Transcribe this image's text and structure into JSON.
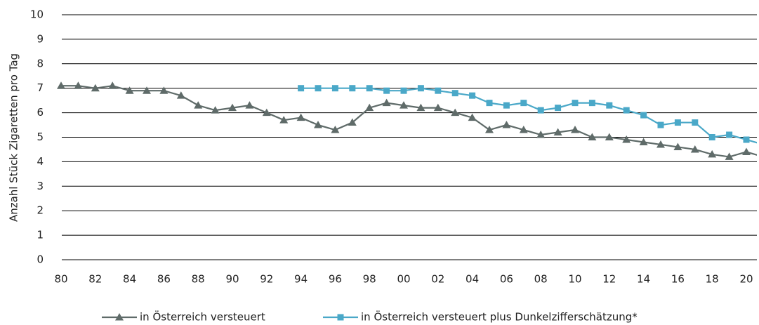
{
  "chart_data": {
    "type": "line",
    "y_label": "Anzahl Stück Zigaretten pro Tag",
    "categories": [
      "80",
      null,
      "82",
      null,
      "84",
      null,
      "86",
      null,
      "88",
      null,
      "90",
      null,
      "92",
      null,
      "94",
      null,
      "96",
      null,
      "98",
      null,
      "00",
      null,
      "02",
      null,
      "04",
      null,
      "06",
      null,
      "08",
      null,
      "10",
      null,
      "12",
      null,
      "14",
      null,
      "16",
      null,
      "18",
      null,
      "20",
      null
    ],
    "series": [
      {
        "name": "in Österreich versteuert",
        "color": "#5f6b69",
        "marker": "triangle",
        "values": [
          7.1,
          7.1,
          7.0,
          7.1,
          6.9,
          6.9,
          6.9,
          6.7,
          6.3,
          6.1,
          6.2,
          6.3,
          6.0,
          5.7,
          5.8,
          5.5,
          5.3,
          5.6,
          6.2,
          6.4,
          6.3,
          6.2,
          6.2,
          6.0,
          5.8,
          5.3,
          5.5,
          5.3,
          5.1,
          5.2,
          5.3,
          5.0,
          5.0,
          4.9,
          4.8,
          4.7,
          4.6,
          4.5,
          4.3,
          4.2,
          4.4,
          4.2
        ]
      },
      {
        "name": "in Österreich versteuert plus Dunkelzifferschätzung*",
        "color": "#4aa8c8",
        "marker": "square",
        "values": [
          null,
          null,
          null,
          null,
          null,
          null,
          null,
          null,
          null,
          null,
          null,
          null,
          null,
          null,
          7.0,
          7.0,
          7.0,
          7.0,
          7.0,
          6.9,
          6.9,
          7.0,
          6.9,
          6.8,
          6.7,
          6.4,
          6.3,
          6.4,
          6.1,
          6.2,
          6.4,
          6.4,
          6.3,
          6.1,
          5.9,
          5.5,
          5.6,
          5.6,
          5.0,
          5.1,
          4.9,
          4.7
        ]
      }
    ],
    "ylim": [
      0,
      10
    ],
    "yticks": [
      0,
      1,
      2,
      3,
      4,
      5,
      6,
      7,
      8,
      9,
      10
    ],
    "grid": true
  }
}
